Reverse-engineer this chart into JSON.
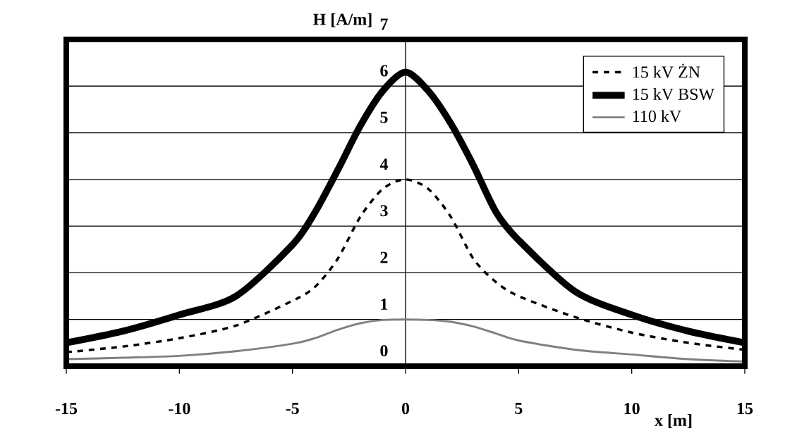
{
  "chart_data": {
    "type": "line",
    "xlabel": "x [m]",
    "ylabel": "H [A/m]",
    "x": [
      -15,
      -12.5,
      -10,
      -7.5,
      -5,
      -4,
      -3,
      -2,
      -1,
      0,
      1,
      2,
      3,
      4,
      5,
      7.5,
      10,
      12.5,
      15
    ],
    "series": [
      {
        "name": "15 kV ŻN",
        "color": "#000000",
        "line_style": "dashed",
        "values": [
          0.3,
          0.42,
          0.6,
          0.87,
          1.4,
          1.7,
          2.3,
          3.2,
          3.8,
          4.0,
          3.8,
          3.2,
          2.3,
          1.8,
          1.5,
          1.05,
          0.72,
          0.5,
          0.35
        ]
      },
      {
        "name": "15 kV BSW",
        "color": "#000000",
        "line_style": "solid",
        "values": [
          0.5,
          0.75,
          1.1,
          1.5,
          2.6,
          3.3,
          4.2,
          5.15,
          5.9,
          6.3,
          5.9,
          5.2,
          4.3,
          3.3,
          2.7,
          1.6,
          1.1,
          0.75,
          0.5
        ]
      },
      {
        "name": "110 kV",
        "color": "#808080",
        "line_style": "solid",
        "values": [
          0.15,
          0.18,
          0.22,
          0.32,
          0.48,
          0.6,
          0.78,
          0.92,
          0.99,
          1.0,
          0.99,
          0.95,
          0.85,
          0.7,
          0.55,
          0.35,
          0.25,
          0.15,
          0.1
        ]
      }
    ],
    "xlim": [
      -15,
      15
    ],
    "ylim": [
      0,
      7
    ],
    "xticks": [
      -15,
      -10,
      -5,
      0,
      5,
      10,
      15
    ],
    "yticks": [
      0,
      1,
      2,
      3,
      4,
      5,
      6,
      7
    ],
    "grid": "y",
    "legend": "top right",
    "marker": "none"
  }
}
